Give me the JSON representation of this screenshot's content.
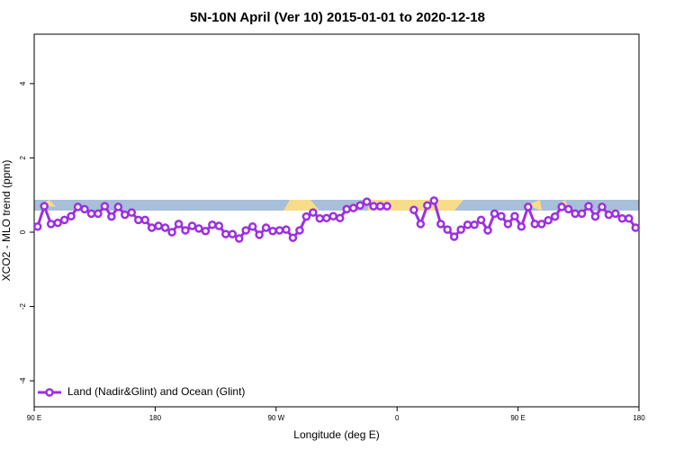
{
  "chart_data": {
    "type": "line",
    "title": "5N-10N April (Ver 10)   2015-01-01 to 2020-12-18",
    "x_label": "Longitude (deg E)",
    "y_label": "XCO2 - MLO trend (ppm)",
    "xlim": [
      90,
      540
    ],
    "xticks": [
      {
        "value": 90,
        "label": "90 E"
      },
      180,
      {
        "value": 270,
        "label": "90 W"
      },
      {
        "value": 360,
        "label": "0"
      },
      {
        "value": 450,
        "label": "90 E"
      },
      {
        "value": 540,
        "label": "180"
      }
    ],
    "ylim": [
      -4.7,
      5.33
    ],
    "yticks": [
      -4,
      -2,
      0,
      2,
      4
    ],
    "legend": "bottom-left",
    "x": [
      92.5,
      97.5,
      102.5,
      107.5,
      112.5,
      117.5,
      122.5,
      127.5,
      132.5,
      137.5,
      142.5,
      147.5,
      152.5,
      157.5,
      162.5,
      167.5,
      172.5,
      177.5,
      182.5,
      187.5,
      192.5,
      197.5,
      202.5,
      207.5,
      212.5,
      217.5,
      222.5,
      227.5,
      232.5,
      237.5,
      242.5,
      247.5,
      252.5,
      257.5,
      262.5,
      267.5,
      272.5,
      277.5,
      282.5,
      287.5,
      292.5,
      297.5,
      302.5,
      307.5,
      312.5,
      317.5,
      322.5,
      327.5,
      332.5,
      337.5,
      342.5,
      347.5,
      352.5,
      357.5,
      362.5,
      367.5,
      372.5,
      377.5,
      382.5,
      387.5,
      392.5,
      397.5,
      402.5,
      407.5,
      412.5,
      417.5,
      422.5,
      427.5,
      432.5,
      437.5,
      442.5,
      447.5,
      452.5,
      457.5,
      462.5,
      467.5,
      472.5,
      477.5,
      482.5,
      487.5,
      492.5,
      497.5,
      502.5,
      507.5,
      512.5,
      517.5,
      522.5,
      527.5,
      532.5,
      537.5
    ],
    "series": [
      {
        "name": "Land (Nadir&Glint) and Ocean (Glint)",
        "color": "#9b30e0",
        "values": [
          0.15,
          0.7,
          0.22,
          0.25,
          0.33,
          0.43,
          0.68,
          0.62,
          0.5,
          0.5,
          0.7,
          0.42,
          0.68,
          0.47,
          0.53,
          0.33,
          0.33,
          0.12,
          0.17,
          0.12,
          0.0,
          0.22,
          0.05,
          0.17,
          0.1,
          0.03,
          0.2,
          0.17,
          -0.05,
          -0.05,
          -0.17,
          0.05,
          0.15,
          -0.07,
          0.12,
          0.03,
          0.05,
          0.07,
          -0.15,
          0.05,
          0.42,
          0.53,
          0.37,
          0.38,
          0.43,
          0.38,
          0.62,
          0.65,
          0.72,
          0.82,
          0.7,
          0.7,
          0.7,
          null,
          null,
          null,
          0.6,
          0.22,
          0.72,
          0.85,
          0.22,
          0.07,
          -0.12,
          0.07,
          0.2,
          0.2,
          0.33,
          0.05,
          0.5,
          0.43,
          0.22,
          0.43,
          0.15,
          0.68,
          0.22,
          0.22,
          0.32,
          0.42,
          0.68,
          0.62,
          0.5,
          0.5,
          0.7,
          0.42,
          0.68,
          0.47,
          0.5,
          0.37,
          0.37,
          0.12
        ]
      }
    ]
  }
}
